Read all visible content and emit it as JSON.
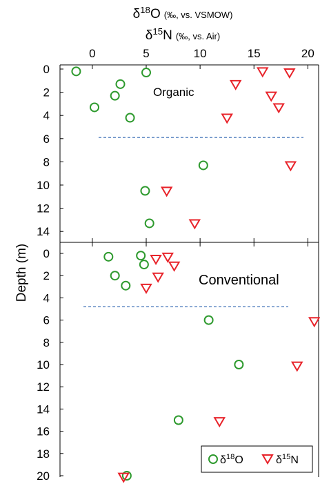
{
  "chart_data": {
    "type": "scatter",
    "xlabel_main": "δ18O",
    "xlabel_units": "(‰, vs. VSMOW)",
    "xlabel2_main": "δ15N",
    "xlabel2_units": "(‰, vs. Air)",
    "ylabel": "Depth (m)",
    "x_ticks": [
      "0",
      "5",
      "10",
      "15",
      "20"
    ],
    "xlim": [
      -3,
      21
    ],
    "legend": {
      "placement": "bottom-right",
      "o18": "δ18O",
      "n15": "δ15N"
    },
    "colors": {
      "o18": "#2e9a2e",
      "n15": "#e8232a",
      "threshold": "#3b6fb5"
    },
    "panels": [
      {
        "name": "Organic",
        "ylim": [
          0,
          15
        ],
        "y_ticks": [
          "0",
          "2",
          "4",
          "6",
          "8",
          "10",
          "12",
          "14"
        ],
        "threshold_depth": 5.9,
        "o18": [
          {
            "x": -1.5,
            "y": 0.2
          },
          {
            "x": 5.0,
            "y": 0.3
          },
          {
            "x": 2.6,
            "y": 1.3
          },
          {
            "x": 2.1,
            "y": 2.3
          },
          {
            "x": 0.2,
            "y": 3.3
          },
          {
            "x": 3.5,
            "y": 4.2
          },
          {
            "x": 10.3,
            "y": 8.3
          },
          {
            "x": 4.9,
            "y": 10.5
          },
          {
            "x": 5.3,
            "y": 13.3
          }
        ],
        "n15": [
          {
            "x": 15.8,
            "y": 0.2
          },
          {
            "x": 18.3,
            "y": 0.3
          },
          {
            "x": 13.3,
            "y": 1.3
          },
          {
            "x": 16.6,
            "y": 2.3
          },
          {
            "x": 17.3,
            "y": 3.3
          },
          {
            "x": 12.5,
            "y": 4.2
          },
          {
            "x": 18.4,
            "y": 8.3
          },
          {
            "x": 6.9,
            "y": 10.5
          },
          {
            "x": 9.5,
            "y": 13.3
          }
        ]
      },
      {
        "name": "Conventional",
        "ylim": [
          0,
          20
        ],
        "y_ticks": [
          "0",
          "2",
          "4",
          "6",
          "8",
          "10",
          "12",
          "14",
          "16",
          "18",
          "20"
        ],
        "threshold_depth": 4.8,
        "o18": [
          {
            "x": 1.5,
            "y": 0.3
          },
          {
            "x": 4.5,
            "y": 0.2
          },
          {
            "x": 4.8,
            "y": 1.0
          },
          {
            "x": 2.1,
            "y": 2.0
          },
          {
            "x": 3.1,
            "y": 2.9
          },
          {
            "x": 10.8,
            "y": 6.0
          },
          {
            "x": 13.6,
            "y": 10.0
          },
          {
            "x": 8.0,
            "y": 15.0
          },
          {
            "x": 3.2,
            "y": 20.0
          }
        ],
        "n15": [
          {
            "x": 5.9,
            "y": 0.5
          },
          {
            "x": 7.0,
            "y": 0.3
          },
          {
            "x": 7.6,
            "y": 1.1
          },
          {
            "x": 6.1,
            "y": 2.1
          },
          {
            "x": 5.0,
            "y": 3.1
          },
          {
            "x": 20.6,
            "y": 6.1
          },
          {
            "x": 19.0,
            "y": 10.1
          },
          {
            "x": 11.8,
            "y": 15.1
          },
          {
            "x": 2.9,
            "y": 20.1
          }
        ]
      }
    ]
  }
}
